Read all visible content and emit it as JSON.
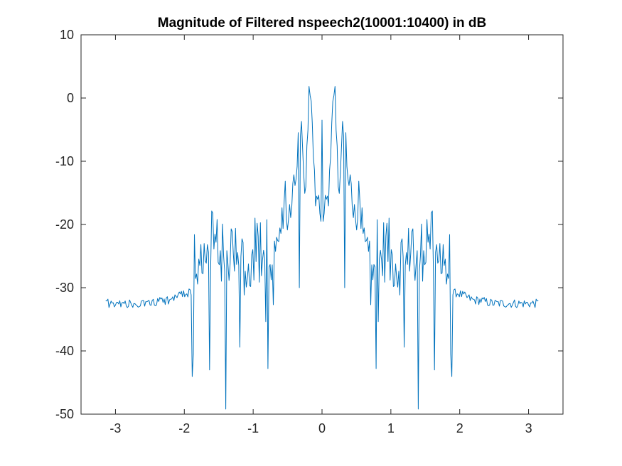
{
  "chart_data": {
    "type": "line",
    "title": "Magnitude of Filtered nspeech2(10001:10400) in dB",
    "xlabel": "",
    "ylabel": "",
    "xlim": [
      -3.5,
      3.5
    ],
    "ylim": [
      -50,
      10
    ],
    "x_ticks": [
      "-3",
      "-2",
      "-1",
      "0",
      "1",
      "2",
      "3"
    ],
    "y_ticks": [
      "10",
      "0",
      "-10",
      "-20",
      "-30",
      "-40",
      "-50"
    ],
    "grid": false,
    "legend": "none",
    "series_color": "#0072BD",
    "envelope": {
      "x": [
        0,
        0.03,
        0.06,
        0.09,
        0.12,
        0.15,
        0.18,
        0.21,
        0.24,
        0.27,
        0.3,
        0.33,
        0.36,
        0.39,
        0.42,
        0.46,
        0.5,
        0.55,
        0.6,
        0.65,
        0.7,
        0.75,
        0.8,
        0.85,
        0.9,
        0.95,
        1.0,
        1.05,
        1.1,
        1.15,
        1.2,
        1.25,
        1.3,
        1.35,
        1.4,
        1.45,
        1.5,
        1.55,
        1.6,
        1.65,
        1.7,
        1.75,
        1.8,
        1.85,
        1.9,
        1.95,
        2.0,
        2.1,
        2.2,
        2.3,
        2.4,
        2.5,
        2.6,
        2.7,
        2.8,
        2.9,
        3.0,
        3.1,
        3.14
      ],
      "y": [
        -18,
        -19,
        -17,
        -16,
        -12,
        -3,
        2.5,
        -5,
        -14,
        -13,
        -5,
        -3,
        -10,
        -13,
        -15,
        -19,
        -17,
        -19,
        -22,
        -25,
        -21,
        -24,
        -23,
        -26,
        -24,
        -23,
        -26,
        -25,
        -27,
        -25,
        -27,
        -26,
        -20,
        -27,
        -26,
        -24,
        -22,
        -21,
        -23,
        -27,
        -26,
        -22,
        -28,
        -26,
        -31,
        -30.8,
        -31,
        -31.5,
        -32,
        -32,
        -32.3,
        -32.5,
        -32.5,
        -32.5,
        -32.5,
        -32.5,
        -32.5,
        -32.5,
        -32.5
      ],
      "mirror_about_zero": true
    }
  }
}
